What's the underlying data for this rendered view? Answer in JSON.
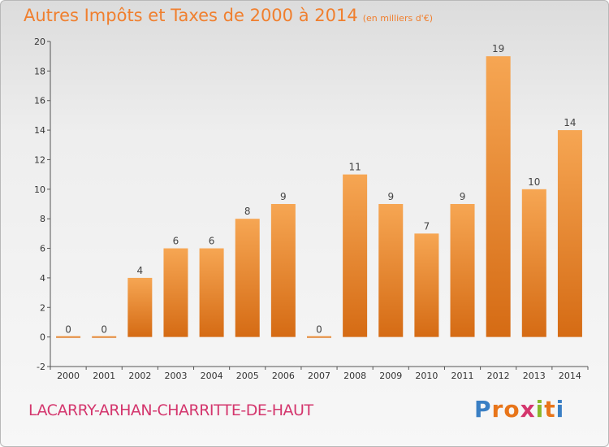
{
  "title": "Autres Impôts et Taxes de 2000 à 2014",
  "subtitle": "(en milliers d'€)",
  "commune": "LACARRY-ARHAN-CHARRITTE-DE-HAUT",
  "logo": {
    "letters": [
      "P",
      "r",
      "o",
      "x",
      "i",
      "t",
      "i"
    ],
    "colors": [
      "#3a7fc4",
      "#e8751a",
      "#e8751a",
      "#d4366d",
      "#8ab829",
      "#e8751a",
      "#3a7fc4"
    ]
  },
  "colors": {
    "bar_top": "#f6a653",
    "bar_bottom": "#d56b14",
    "title": "#f07f2e",
    "commune": "#d4366d",
    "axis": "#555555"
  },
  "chart_data": {
    "type": "bar",
    "title": "Autres Impôts et Taxes de 2000 à 2014",
    "subtitle": "(en milliers d'€)",
    "xlabel": "",
    "ylabel": "",
    "categories": [
      "2000",
      "2001",
      "2002",
      "2003",
      "2004",
      "2005",
      "2006",
      "2007",
      "2008",
      "2009",
      "2010",
      "2011",
      "2012",
      "2013",
      "2014"
    ],
    "values": [
      0,
      0,
      4,
      6,
      6,
      8,
      9,
      0,
      11,
      9,
      7,
      9,
      19,
      10,
      14
    ],
    "ylim": [
      -2,
      20
    ],
    "yticks": [
      -2,
      0,
      2,
      4,
      6,
      8,
      10,
      12,
      14,
      16,
      18,
      20
    ],
    "grid": false,
    "legend": "none"
  }
}
